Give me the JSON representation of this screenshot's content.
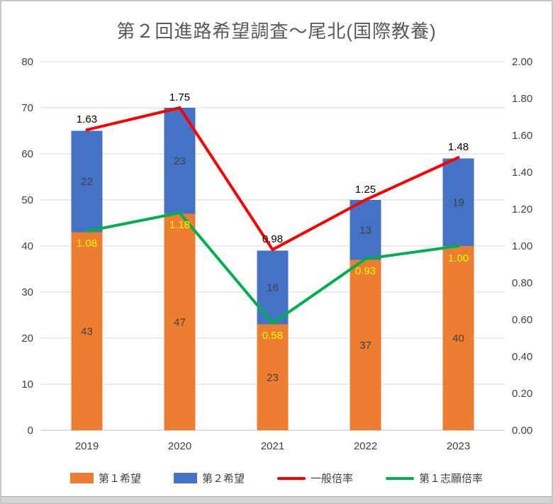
{
  "title": "第２回進路希望調査～尾北(国際教養)",
  "chart_data": {
    "type": "bar",
    "subtype": "stacked-bar-with-lines",
    "title": "第２回進路希望調査～尾北(国際教養)",
    "categories": [
      "2019",
      "2020",
      "2021",
      "2022",
      "2023"
    ],
    "bar_series": [
      {
        "name": "第１希望",
        "color": "#ED7D31",
        "label_color": "#404040",
        "values": [
          43,
          47,
          23,
          37,
          40
        ]
      },
      {
        "name": "第２希望",
        "color": "#4472C4",
        "label_color": "#404040",
        "values": [
          22,
          23,
          16,
          13,
          19
        ]
      }
    ],
    "line_series": [
      {
        "name": "一般倍率",
        "color": "#FF0000",
        "label_color": "#000000",
        "label_position": "above",
        "axis": "right",
        "values": [
          1.63,
          1.75,
          0.98,
          1.25,
          1.48
        ],
        "labels": [
          "1.63",
          "1.75",
          "0.98",
          "1.25",
          "1.48"
        ]
      },
      {
        "name": "第１志願倍率",
        "color": "#00B050",
        "label_color": "#FFFF00",
        "label_position": "below",
        "axis": "right",
        "values": [
          1.08,
          1.18,
          0.58,
          0.93,
          1.0
        ],
        "labels": [
          "1.08",
          "1.18",
          "0.58",
          "0.93",
          "1.00"
        ]
      }
    ],
    "left_axis": {
      "min": 0,
      "max": 80,
      "step": 10,
      "ticks": [
        "0",
        "10",
        "20",
        "30",
        "40",
        "50",
        "60",
        "70",
        "80"
      ]
    },
    "right_axis": {
      "min": 0,
      "max": 2,
      "step": 0.2,
      "ticks": [
        "0.00",
        "0.20",
        "0.40",
        "0.60",
        "0.80",
        "1.00",
        "1.20",
        "1.40",
        "1.60",
        "1.80",
        "2.00"
      ]
    },
    "grid": true,
    "stacked": true,
    "legend_position": "bottom",
    "colors": {
      "grid": "#D9D9D9",
      "axis_line": "#BFBFBF",
      "tick_text": "#404040",
      "title_text": "#595959"
    }
  }
}
